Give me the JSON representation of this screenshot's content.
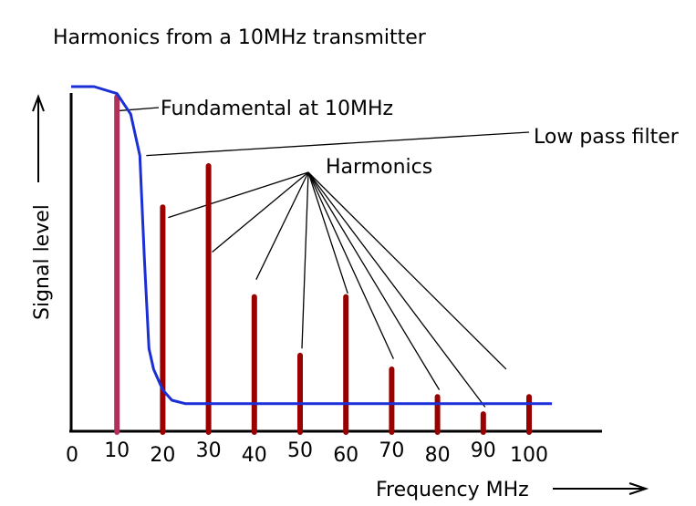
{
  "chart_data": {
    "type": "bar",
    "title": "Harmonics from a 10MHz transmitter",
    "xlabel": "Frequency MHz",
    "ylabel": "Signal level",
    "xlim": [
      0,
      108
    ],
    "ylim": [
      0,
      100
    ],
    "x_ticks": [
      "0",
      "10",
      "20",
      "30",
      "40",
      "50",
      "60",
      "70",
      "80",
      "90",
      "100"
    ],
    "bars": [
      {
        "x": 10,
        "value": 97
      },
      {
        "x": 20,
        "value": 65
      },
      {
        "x": 30,
        "value": 77
      },
      {
        "x": 40,
        "value": 39
      },
      {
        "x": 50,
        "value": 22
      },
      {
        "x": 60,
        "value": 39
      },
      {
        "x": 70,
        "value": 18
      },
      {
        "x": 80,
        "value": 10
      },
      {
        "x": 90,
        "value": 5
      },
      {
        "x": 100,
        "value": 10
      }
    ],
    "filter_curve": {
      "x": [
        0,
        5,
        10,
        13,
        15,
        16,
        17,
        18,
        20,
        22,
        25,
        30,
        40,
        60,
        80,
        100,
        105
      ],
      "y": [
        100,
        100,
        98,
        92,
        80,
        50,
        24,
        18,
        12,
        9,
        8,
        8,
        8,
        8,
        8,
        8,
        8
      ]
    },
    "annotations": {
      "fundamental": "Fundamental at 10MHz",
      "filter": "Low pass filter",
      "harmonics": "Harmonics"
    },
    "colors": {
      "bars": "#990000",
      "fundamental_bar": "#b0305a",
      "filter": "#1a2fd6",
      "axis": "#000000"
    },
    "grid": false,
    "legend": "none"
  }
}
